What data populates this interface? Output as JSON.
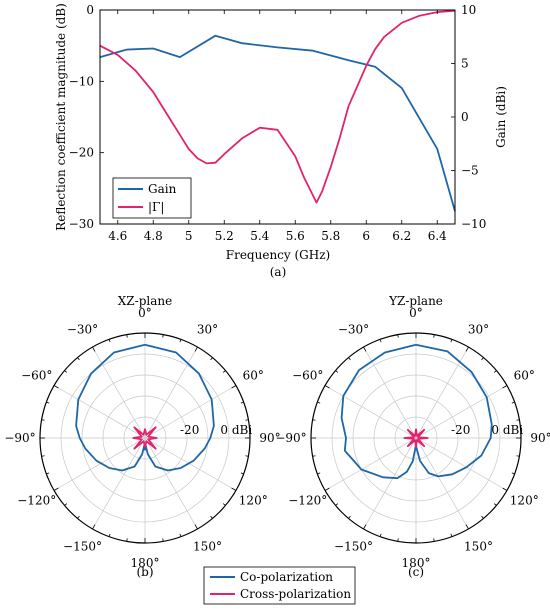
{
  "colors": {
    "gain": "#1f66a8",
    "reflection": "#e0246e",
    "co": "#1f66a8",
    "cross": "#e0246e",
    "grid": "#c8c8c8"
  },
  "chart_data": [
    {
      "type": "line",
      "caption": "(a)",
      "xlabel": "Frequency (GHz)",
      "ylabel_left": "Reflection coefficient magnitude (dB)",
      "ylabel_right": "Gain (dBi)",
      "xlim": [
        4.5,
        6.5
      ],
      "ylim_left": [
        -30,
        0
      ],
      "ylim_right": [
        -10,
        10
      ],
      "xticks": [
        4.6,
        4.8,
        5,
        5.2,
        5.4,
        5.6,
        5.8,
        6,
        6.2,
        6.4
      ],
      "xtick_labels": [
        "4.6",
        "4.8",
        "5",
        "5.2",
        "5.4",
        "5.6",
        "5.8",
        "6",
        "6.2",
        "6.4"
      ],
      "yticks_left": [
        0,
        -10,
        -20,
        -30
      ],
      "ytick_labels_left": [
        "0",
        "−10",
        "−20",
        "−30"
      ],
      "yticks_right": [
        10,
        5,
        0,
        -5,
        -10
      ],
      "ytick_labels_right": [
        "10",
        "5",
        "0",
        "−5",
        "−10"
      ],
      "legend": {
        "position": "bottom-left",
        "entries": [
          "Gain",
          "|Γ|"
        ]
      },
      "series": [
        {
          "name": "Gain",
          "axis": "right",
          "color_key": "gain",
          "x": [
            4.5,
            4.65,
            4.8,
            4.95,
            5.15,
            5.3,
            5.5,
            5.7,
            5.9,
            6.05,
            6.2,
            6.4,
            6.5
          ],
          "y": [
            5.6,
            6.3,
            6.4,
            5.6,
            7.6,
            6.9,
            6.5,
            6.2,
            5.3,
            4.7,
            2.7,
            -3.0,
            -8.8
          ]
        },
        {
          "name": "|Γ|",
          "axis": "left",
          "color_key": "reflection",
          "x": [
            4.5,
            4.6,
            4.7,
            4.8,
            4.9,
            4.95,
            5.0,
            5.05,
            5.1,
            5.15,
            5.2,
            5.3,
            5.4,
            5.5,
            5.6,
            5.65,
            5.7,
            5.72,
            5.75,
            5.8,
            5.85,
            5.9,
            6.0,
            6.05,
            6.1,
            6.2,
            6.3,
            6.4,
            6.5
          ],
          "y": [
            -5.0,
            -6.3,
            -8.5,
            -11.5,
            -15.5,
            -17.5,
            -19.5,
            -20.8,
            -21.5,
            -21.4,
            -20.2,
            -18.0,
            -16.5,
            -16.8,
            -20.5,
            -23.5,
            -26.0,
            -27.0,
            -25.5,
            -22.0,
            -18.0,
            -13.5,
            -7.8,
            -5.5,
            -3.8,
            -1.8,
            -0.8,
            -0.3,
            -0.1
          ]
        }
      ]
    },
    {
      "type": "polar",
      "title": "XZ-plane",
      "caption": "(b)",
      "angle_labels": [
        "0°",
        "30°",
        "60°",
        "90°",
        "120°",
        "150°",
        "180°",
        "−150°",
        "−120°",
        "−90°",
        "−60°",
        "−30°"
      ],
      "radial_labels": [
        "0 dBi",
        "-20"
      ],
      "rlim": [
        -40,
        5
      ],
      "series": [
        {
          "name": "Co-polarization",
          "color_key": "co",
          "theta": [
            0,
            20,
            40,
            60,
            80,
            90,
            100,
            115,
            130,
            145,
            160,
            170,
            175,
            180,
            185,
            190,
            200,
            215,
            230,
            245,
            260,
            270,
            280,
            300,
            320,
            340,
            360
          ],
          "r": [
            0,
            -1,
            -4,
            -7,
            -10,
            -12,
            -14,
            -17,
            -20,
            -23,
            -27,
            -33,
            -37,
            -35,
            -37,
            -33,
            -27,
            -23,
            -20,
            -17,
            -14,
            -12,
            -10,
            -7,
            -4,
            -1,
            0
          ]
        },
        {
          "name": "Cross-polarization",
          "color_key": "cross",
          "theta": [
            0,
            22,
            45,
            67,
            90,
            112,
            135,
            157,
            180,
            202,
            225,
            247,
            270,
            292,
            315,
            337,
            360
          ],
          "r": [
            -36,
            -38.5,
            -33.5,
            -38.5,
            -35,
            -38.5,
            -33.5,
            -38.5,
            -36,
            -38.5,
            -33.5,
            -38.5,
            -35,
            -38.5,
            -33.5,
            -38.5,
            -36
          ]
        }
      ]
    },
    {
      "type": "polar",
      "title": "YZ-plane",
      "caption": "(c)",
      "angle_labels": [
        "0°",
        "30°",
        "60°",
        "90°",
        "120°",
        "150°",
        "180°",
        "−150°",
        "−120°",
        "−90°",
        "−60°",
        "−30°"
      ],
      "radial_labels": [
        "0 dBi",
        "-20"
      ],
      "rlim": [
        -40,
        5
      ],
      "series": [
        {
          "name": "Co-polarization",
          "color_key": "co",
          "theta": [
            0,
            20,
            40,
            60,
            80,
            90,
            105,
            120,
            135,
            150,
            160,
            170,
            178,
            180,
            183,
            188,
            195,
            205,
            220,
            240,
            260,
            270,
            285,
            300,
            320,
            340,
            360
          ],
          "r": [
            0,
            -0.5,
            -3,
            -5,
            -7,
            -8,
            -11,
            -15,
            -18,
            -21,
            -24,
            -30,
            -36,
            -38,
            -36,
            -30,
            -25,
            -21,
            -18,
            -13,
            -9,
            -10,
            -7,
            -4,
            -2,
            -1,
            0
          ]
        },
        {
          "name": "Cross-polarization",
          "color_key": "cross",
          "theta": [
            0,
            22,
            45,
            67,
            90,
            112,
            135,
            157,
            180,
            202,
            225,
            247,
            270,
            292,
            315,
            337,
            360
          ],
          "r": [
            -36,
            -39,
            -35,
            -39,
            -35,
            -39,
            -35,
            -39,
            -36,
            -39,
            -35,
            -39,
            -35,
            -39,
            -35,
            -39,
            -36
          ]
        }
      ]
    }
  ],
  "bottom_legend": {
    "entries": [
      "Co-polarization",
      "Cross-polarization"
    ]
  }
}
